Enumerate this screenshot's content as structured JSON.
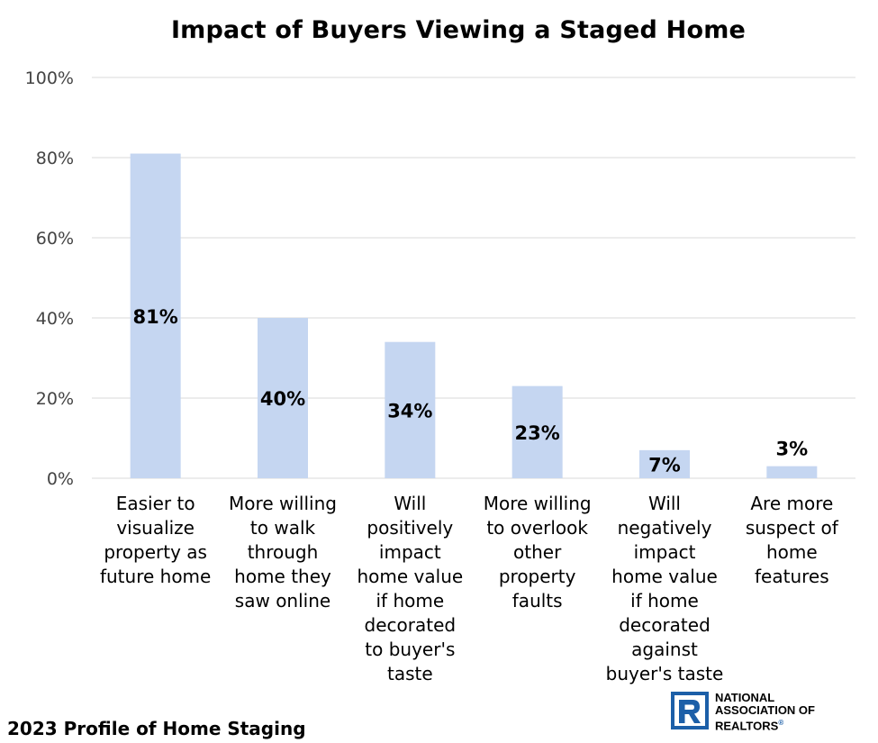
{
  "chart_data": {
    "type": "bar",
    "title": "Impact of Buyers Viewing a Staged Home",
    "categories": [
      [
        "Easier to",
        "visualize",
        "property as",
        "future home"
      ],
      [
        "More willing",
        "to walk",
        "through",
        "home they",
        "saw online"
      ],
      [
        "Will",
        "positively",
        "impact",
        "home value",
        "if home",
        "decorated",
        "to buyer's",
        "taste"
      ],
      [
        "More willing",
        "to overlook",
        "other",
        "property",
        "faults"
      ],
      [
        "Will",
        "negatively",
        "impact",
        "home value",
        "if home",
        "decorated",
        "against",
        "buyer's taste"
      ],
      [
        "Are more",
        "suspect of",
        "home",
        "features"
      ]
    ],
    "values": [
      81,
      40,
      34,
      23,
      7,
      3
    ],
    "value_labels": [
      "81%",
      "40%",
      "34%",
      "23%",
      "7%",
      "3%"
    ],
    "ylim": [
      0,
      100
    ],
    "yticks": [
      0,
      20,
      40,
      60,
      80,
      100
    ],
    "ytick_labels": [
      "0%",
      "20%",
      "40%",
      "60%",
      "80%",
      "100%"
    ],
    "grid": true,
    "bar_color": "#c5d6f1",
    "grid_color": "#d9d9d9"
  },
  "footer": {
    "source": "2023 Profile of Home Staging"
  },
  "logo": {
    "line1": "NATIONAL",
    "line2": "ASSOCIATION OF",
    "line3": "REALTORS",
    "reg": "®",
    "color": "#1c5fa8"
  }
}
